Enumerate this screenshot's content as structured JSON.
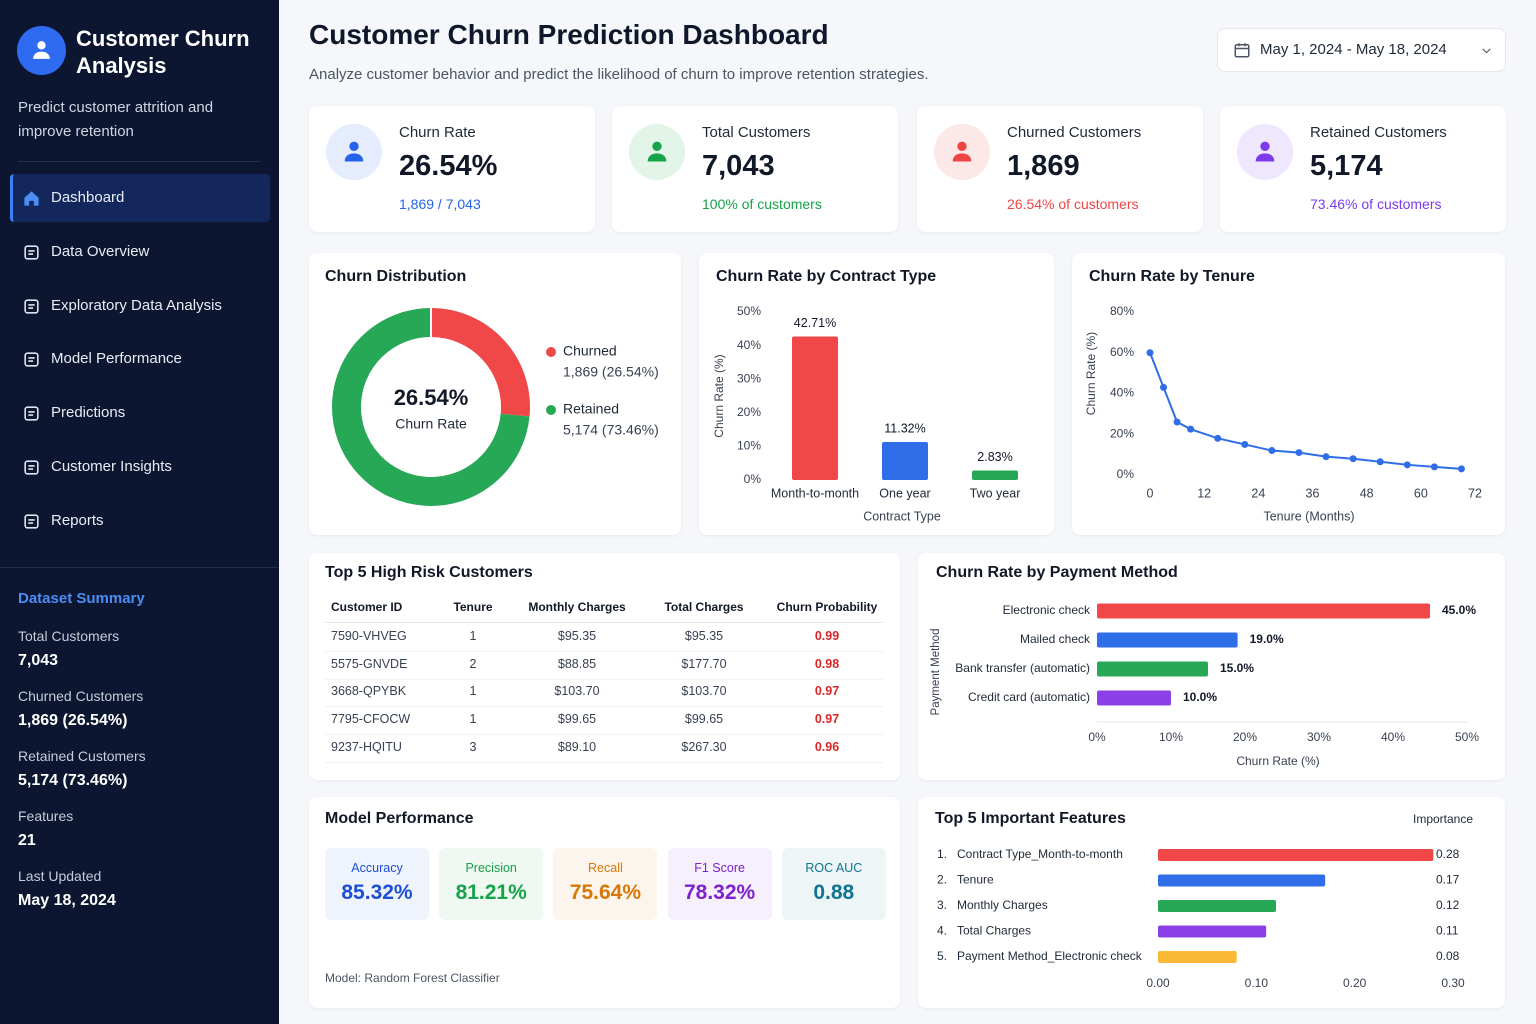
{
  "sidebar": {
    "title": "Customer Churn Analysis",
    "subtitle": "Predict customer attrition and improve retention",
    "nav": [
      "Dashboard",
      "Data Overview",
      "Exploratory Data Analysis",
      "Model Performance",
      "Predictions",
      "Customer Insights",
      "Reports"
    ],
    "summary_title": "Dataset Summary",
    "summary": [
      {
        "label": "Total Customers",
        "value": "7,043"
      },
      {
        "label": "Churned Customers",
        "value": "1,869 (26.54%)"
      },
      {
        "label": "Retained Customers",
        "value": "5,174 (73.46%)"
      },
      {
        "label": "Features",
        "value": "21"
      },
      {
        "label": "Last Updated",
        "value": "May 18, 2024"
      }
    ]
  },
  "header": {
    "title": "Customer Churn Prediction Dashboard",
    "subtitle": "Analyze customer behavior and predict the likelihood of churn to improve retention strategies.",
    "date_range": "May 1, 2024 - May 18, 2024"
  },
  "kpis": [
    {
      "label": "Churn Rate",
      "value": "26.54%",
      "note": "1,869 / 7,043",
      "color": "#2563eb"
    },
    {
      "label": "Total Customers",
      "value": "7,043",
      "note": "100% of customers",
      "color": "#16a34a"
    },
    {
      "label": "Churned Customers",
      "value": "1,869",
      "note": "26.54% of customers",
      "color": "#ef4444"
    },
    {
      "label": "Retained Customers",
      "value": "5,174",
      "note": "73.46% of customers",
      "color": "#7c3aed"
    }
  ],
  "table": {
    "title": "Top 5 High Risk Customers",
    "columns": [
      "Customer ID",
      "Tenure",
      "Monthly Charges",
      "Total Charges",
      "Churn Probability"
    ],
    "rows": [
      [
        "7590-VHVEG",
        "1",
        "$95.35",
        "$95.35",
        "0.99"
      ],
      [
        "5575-GNVDE",
        "2",
        "$88.85",
        "$177.70",
        "0.98"
      ],
      [
        "3668-QPYBK",
        "1",
        "$103.70",
        "$103.70",
        "0.97"
      ],
      [
        "7795-CFOCW",
        "1",
        "$99.65",
        "$99.65",
        "0.97"
      ],
      [
        "9237-HQITU",
        "3",
        "$89.10",
        "$267.30",
        "0.96"
      ]
    ]
  },
  "model": {
    "title": "Model Performance",
    "metrics": [
      {
        "label": "Accuracy",
        "value": "85.32%",
        "color": "#1d4ed8"
      },
      {
        "label": "Precision",
        "value": "81.21%",
        "color": "#16a34a"
      },
      {
        "label": "Recall",
        "value": "75.64%",
        "color": "#d97706"
      },
      {
        "label": "F1 Score",
        "value": "78.32%",
        "color": "#7e22ce"
      },
      {
        "label": "ROC AUC",
        "value": "0.88",
        "color": "#0e7490"
      }
    ],
    "note": "Model: Random Forest Classifier"
  },
  "chart_data": [
    {
      "type": "pie",
      "title": "Churn Distribution",
      "center_value": "26.54%",
      "center_label": "Churn Rate",
      "categories": [
        "Churned",
        "Retained"
      ],
      "values": [
        26.54,
        73.46
      ],
      "value_labels": [
        "1,869 (26.54%)",
        "5,174 (73.46%)"
      ],
      "colors": [
        "#f04848",
        "#27a856"
      ]
    },
    {
      "type": "bar",
      "title": "Churn Rate by Contract Type",
      "categories": [
        "Month-to-month",
        "One year",
        "Two year"
      ],
      "values": [
        42.71,
        11.32,
        2.83
      ],
      "value_labels": [
        "42.71%",
        "11.32%",
        "2.83%"
      ],
      "colors": [
        "#f04848",
        "#2f6ee8",
        "#27a856"
      ],
      "ylim": [
        0,
        50
      ],
      "yticks": [
        {
          "value": 0,
          "label": "0%"
        },
        {
          "value": 10,
          "label": "10%"
        },
        {
          "value": 20,
          "label": "20%"
        },
        {
          "value": 30,
          "label": "30%"
        },
        {
          "value": 40,
          "label": "40%"
        },
        {
          "value": 50,
          "label": "50%"
        }
      ],
      "ylabel": "Churn Rate (%)",
      "xlabel": "Contract Type"
    },
    {
      "type": "line",
      "title": "Churn Rate by Tenure",
      "x": [
        0,
        3,
        6,
        9,
        15,
        21,
        27,
        33,
        39,
        45,
        51,
        57,
        63,
        69
      ],
      "values": [
        60,
        43,
        26,
        22.5,
        18,
        15,
        12,
        11,
        9,
        8,
        6.5,
        5,
        4,
        3
      ],
      "color": "#2f6ee8",
      "xlim": [
        0,
        72
      ],
      "xticks": [
        0,
        12,
        24,
        36,
        48,
        60,
        72
      ],
      "ylim": [
        0,
        80
      ],
      "yticks": [
        {
          "value": 0,
          "label": "0%"
        },
        {
          "value": 20,
          "label": "20%"
        },
        {
          "value": 40,
          "label": "40%"
        },
        {
          "value": 60,
          "label": "60%"
        },
        {
          "value": 80,
          "label": "80%"
        }
      ],
      "ylabel": "Churn Rate (%)",
      "xlabel": "Tenure (Months)"
    },
    {
      "type": "hbar",
      "title": "Churn Rate by Payment Method",
      "categories": [
        "Electronic check",
        "Mailed check",
        "Bank transfer (automatic)",
        "Credit card (automatic)"
      ],
      "values": [
        45,
        19,
        15,
        10
      ],
      "value_labels": [
        "45.0%",
        "19.0%",
        "15.0%",
        "10.0%"
      ],
      "colors": [
        "#f04848",
        "#2f6ee8",
        "#27a856",
        "#8b3fe6"
      ],
      "xlim": [
        0,
        50
      ],
      "xticks": [
        {
          "value": 0,
          "label": "0%"
        },
        {
          "value": 10,
          "label": "10%"
        },
        {
          "value": 20,
          "label": "20%"
        },
        {
          "value": 30,
          "label": "30%"
        },
        {
          "value": 40,
          "label": "40%"
        },
        {
          "value": 50,
          "label": "50%"
        }
      ],
      "xlabel": "Churn Rate (%)",
      "ylabel": "Payment Method"
    },
    {
      "type": "hbar",
      "title": "Top 5 Important Features",
      "legend_title": "Importance",
      "ranks": [
        "1.",
        "2.",
        "3.",
        "4.",
        "5."
      ],
      "categories": [
        "Contract Type_Month-to-month",
        "Tenure",
        "Monthly Charges",
        "Total Charges",
        "Payment Method_Electronic check"
      ],
      "values": [
        0.28,
        0.17,
        0.12,
        0.11,
        0.08
      ],
      "colors": [
        "#f04848",
        "#2f6ee8",
        "#27a856",
        "#8b3fe6",
        "#f9b934"
      ],
      "xlim": [
        0,
        0.3
      ],
      "xticks": [
        {
          "value": 0,
          "label": "0.00"
        },
        {
          "value": 0.1,
          "label": "0.10"
        },
        {
          "value": 0.2,
          "label": "0.20"
        },
        {
          "value": 0.3,
          "label": "0.30"
        }
      ]
    }
  ]
}
